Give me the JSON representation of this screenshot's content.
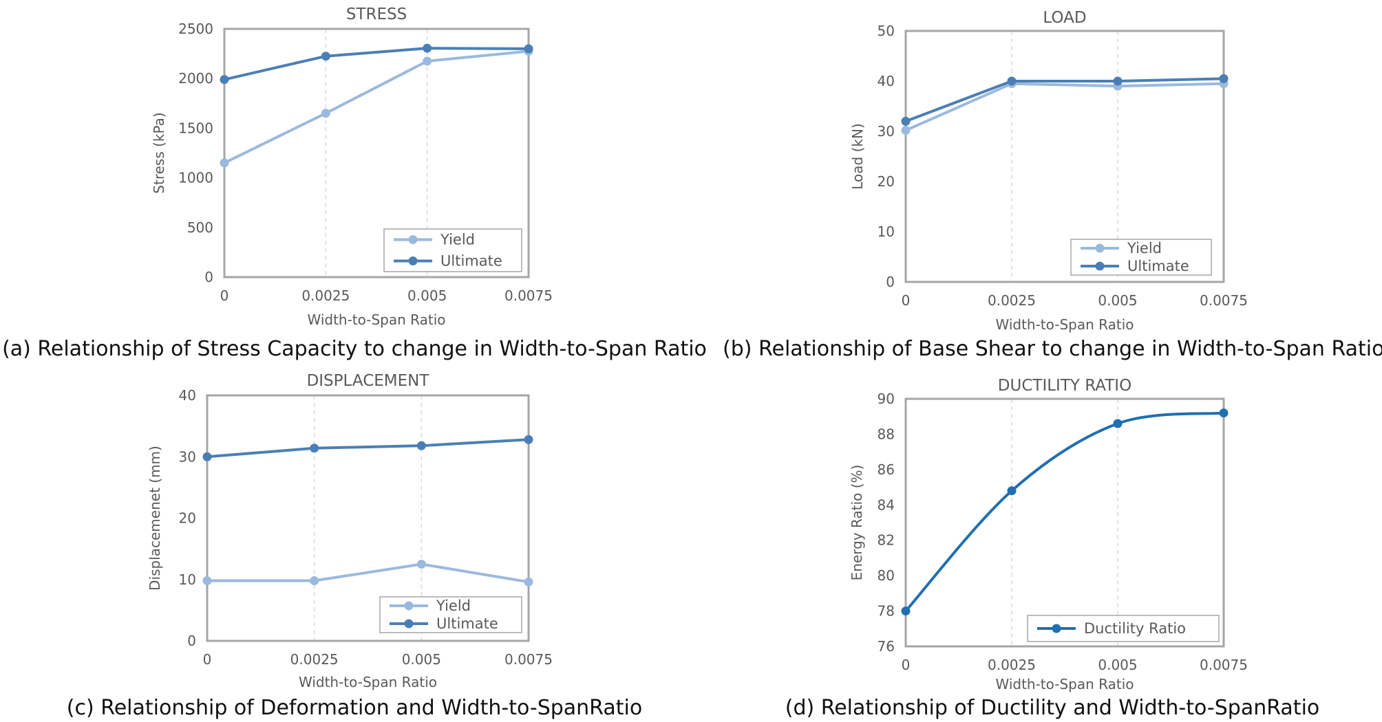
{
  "colors": {
    "yield": "#9ab9de",
    "ultimate": "#4a7fb5",
    "ductility": "#1f6fb2",
    "frame": "#a6a6a6",
    "grid": "#d9d9d9",
    "text": "#595959"
  },
  "charts": [
    {
      "title": "STRESS",
      "caption": "(a) Relationship of Stress Capacity to change in Width-to-Span Ratio",
      "legend_position": "bottom-right",
      "chart_data": {
        "type": "line",
        "title": "STRESS",
        "xlabel": "Width-to-Span Ratio",
        "ylabel": "Stress (kPa)",
        "x": [
          0,
          0.0025,
          0.005,
          0.0075
        ],
        "x_tick_labels": [
          "0",
          "0.0025",
          "0.005",
          "0.0075"
        ],
        "xlim": [
          0,
          0.0075
        ],
        "ylim": [
          0,
          2500
        ],
        "y_ticks": [
          0,
          500,
          1000,
          1500,
          2000,
          2500
        ],
        "grid": "vertical dashed",
        "series": [
          {
            "name": "Yield",
            "values": [
              1150,
              1650,
              2175,
              2275
            ],
            "color": "#9ab9de"
          },
          {
            "name": "Ultimate",
            "values": [
              1990,
              2225,
              2305,
              2300
            ],
            "color": "#4a7fb5"
          }
        ]
      }
    },
    {
      "title": "LOAD",
      "caption": "(b) Relationship of Base Shear to change in Width-to-Span Ratio",
      "legend_position": "bottom-right",
      "chart_data": {
        "type": "line",
        "title": "LOAD",
        "xlabel": "Width-to-Span Ratio",
        "ylabel": "Load (kN)",
        "x": [
          0,
          0.0025,
          0.005,
          0.0075
        ],
        "x_tick_labels": [
          "0",
          "0.0025",
          "0.005",
          "0.0075"
        ],
        "xlim": [
          0,
          0.0075
        ],
        "ylim": [
          0,
          50
        ],
        "y_ticks": [
          0,
          10,
          20,
          30,
          40,
          50
        ],
        "grid": "vertical dashed",
        "series": [
          {
            "name": "Yield",
            "values": [
              30.2,
              39.5,
              39.0,
              39.5
            ],
            "color": "#9ab9de"
          },
          {
            "name": "Ultimate",
            "values": [
              32.0,
              40.0,
              40.0,
              40.5
            ],
            "color": "#4a7fb5"
          }
        ]
      }
    },
    {
      "title": "DISPLACEMENT",
      "caption": "(c) Relationship of Deformation and Width-to-SpanRatio",
      "legend_position": "bottom-right",
      "chart_data": {
        "type": "line",
        "title": "DISPLACEMENT",
        "xlabel": "Width-to-Span Ratio",
        "ylabel": "Displacemenet (mm)",
        "x": [
          0,
          0.0025,
          0.005,
          0.0075
        ],
        "x_tick_labels": [
          "0",
          "0.0025",
          "0.005",
          "0.0075"
        ],
        "xlim": [
          0,
          0.0075
        ],
        "ylim": [
          0,
          40
        ],
        "y_ticks": [
          0,
          10,
          20,
          30,
          40
        ],
        "grid": "vertical dashed",
        "series": [
          {
            "name": "Yield",
            "values": [
              9.8,
              9.8,
              12.5,
              9.6
            ],
            "color": "#9ab9de"
          },
          {
            "name": "Ultimate",
            "values": [
              30.0,
              31.4,
              31.8,
              32.8
            ],
            "color": "#4a7fb5"
          }
        ]
      }
    },
    {
      "title": "DUCTILITY RATIO",
      "caption": "(d) Relationship of Ductility and Width-to-SpanRatio",
      "legend_position": "bottom-right",
      "chart_data": {
        "type": "line",
        "title": "DUCTILITY RATIO",
        "xlabel": "Width-to-Span Ratio",
        "ylabel": "Energy Ratio (%)",
        "x": [
          0,
          0.0025,
          0.005,
          0.0075
        ],
        "x_tick_labels": [
          "0",
          "0.0025",
          "0.005",
          "0.0075"
        ],
        "xlim": [
          0,
          0.0075
        ],
        "ylim": [
          76,
          90
        ],
        "y_ticks": [
          76,
          78,
          80,
          82,
          84,
          86,
          88,
          90
        ],
        "grid": "vertical dashed",
        "smooth": true,
        "series": [
          {
            "name": "Ductility Ratio",
            "values": [
              78.0,
              84.8,
              88.6,
              89.2
            ],
            "color": "#1f6fb2"
          }
        ]
      }
    }
  ]
}
